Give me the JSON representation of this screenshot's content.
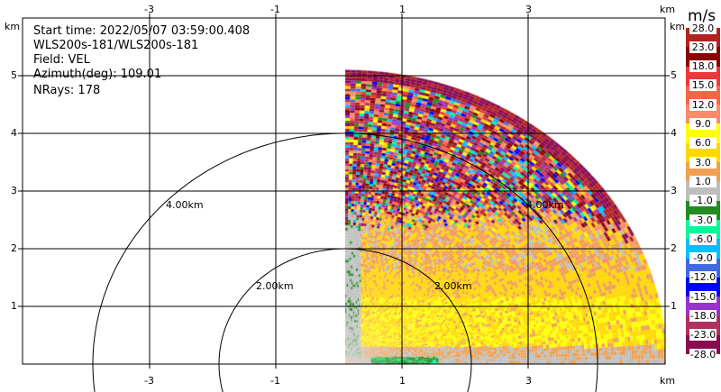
{
  "chart_data": {
    "type": "heatmap",
    "info": [
      "Start time: 2022/05/07 03:59:00.408",
      "WLS200s-181/WLS200s-181",
      "Field: VEL",
      "Azimuth(deg): 109.01",
      "NRays: 178"
    ],
    "x_ticks": [
      "-3",
      "-1",
      "1",
      "3"
    ],
    "y_ticks": [
      "1",
      "2",
      "3",
      "4",
      "5"
    ],
    "x_unit": "km",
    "y_unit": "km",
    "xlim": [
      -5.1,
      5.1
    ],
    "ylim": [
      0,
      6
    ],
    "range_rings": [
      {
        "radius_km": 2,
        "label": "2.00km"
      },
      {
        "radius_km": 4,
        "label": "4.00km"
      }
    ],
    "max_range_km": 5.1,
    "sector_azimuth_deg": [
      0,
      90
    ],
    "colorbar": {
      "unit": "m/s",
      "labels": [
        "28.0",
        "23.0",
        "18.0",
        "15.0",
        "12.0",
        "9.0",
        "6.0",
        "3.0",
        "1.0",
        "-1.0",
        "-3.0",
        "-6.0",
        "-9.0",
        "-12.0",
        "-15.0",
        "-18.0",
        "-23.0",
        "-28.0"
      ],
      "colors": [
        "#b22222",
        "#8b0000",
        "#e83a3a",
        "#ff6347",
        "#fa8a6a",
        "#ffff00",
        "#ffd700",
        "#f0a050",
        "#bebebe",
        "#228b22",
        "#00fa9a",
        "#00bfff",
        "#4169e1",
        "#0000ff",
        "#9932cc",
        "#b03060",
        "#8b0a50"
      ]
    }
  }
}
